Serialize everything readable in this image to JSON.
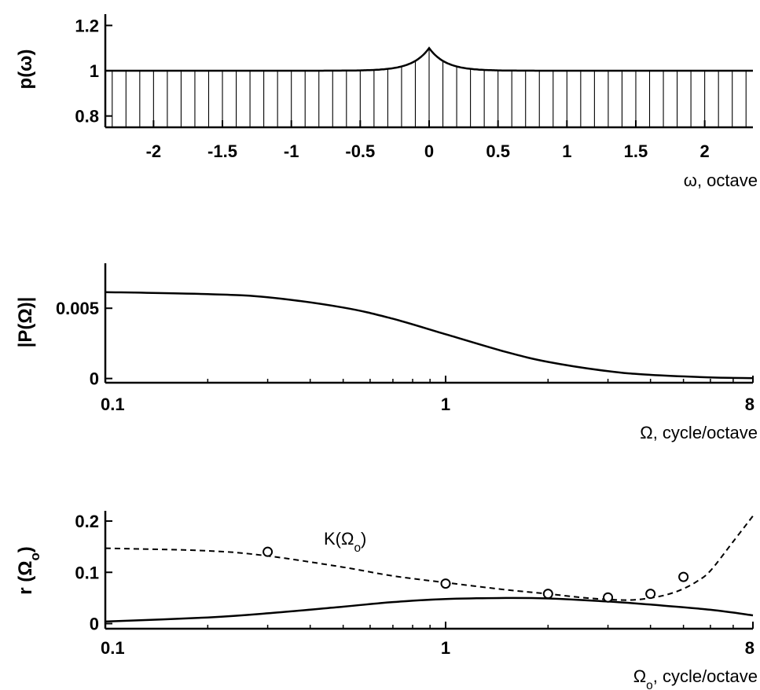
{
  "chart_data": [
    {
      "type": "line",
      "ylabel": "p(ω)",
      "xlabel": "ω, octave",
      "xlim": [
        -2.35,
        2.35
      ],
      "ylim": [
        0.75,
        1.25
      ],
      "x_ticks": [
        {
          "value": -2,
          "label": "-2"
        },
        {
          "value": -1.5,
          "label": "-1.5"
        },
        {
          "value": -1,
          "label": "-1"
        },
        {
          "value": -0.5,
          "label": "-0.5"
        },
        {
          "value": 0,
          "label": "0"
        },
        {
          "value": 0.5,
          "label": "0.5"
        },
        {
          "value": 1,
          "label": "1"
        },
        {
          "value": 1.5,
          "label": "1.5"
        },
        {
          "value": 2,
          "label": "2"
        }
      ],
      "y_ticks": [
        {
          "value": 0.8,
          "label": "0.8"
        },
        {
          "value": 1,
          "label": "1"
        },
        {
          "value": 1.2,
          "label": "1.2"
        }
      ],
      "baseline": 1.0,
      "peak_x": 0,
      "peak_value": 1.1,
      "peak_width": 0.12,
      "stem_spacing": 0.1,
      "grid": false
    },
    {
      "type": "line",
      "ylabel": "|P(Ω)|",
      "xlabel": "Ω, cycle/octave",
      "xscale": "log",
      "xlim": [
        0.1,
        8
      ],
      "ylim": [
        -0.0003,
        0.0082
      ],
      "x_ticks": [
        {
          "value": 0.1,
          "label": "0.1"
        },
        {
          "value": 1,
          "label": "1"
        },
        {
          "value": 8,
          "label": "8"
        }
      ],
      "y_ticks": [
        {
          "value": 0,
          "label": "0"
        },
        {
          "value": 0.005,
          "label": "0.005"
        }
      ],
      "x": [
        0.1,
        0.2,
        0.3,
        0.5,
        0.7,
        1,
        1.5,
        2,
        3,
        4,
        6,
        8
      ],
      "values": [
        0.00615,
        0.006,
        0.00578,
        0.00505,
        0.00425,
        0.00315,
        0.0019,
        0.00118,
        0.00052,
        0.00026,
        8e-05,
        3e-05
      ],
      "grid": false
    },
    {
      "type": "line",
      "ylabel": "r (Ωo)",
      "xlabel": "Ωo, cycle/octave",
      "xscale": "log",
      "xlim": [
        0.1,
        8
      ],
      "ylim": [
        -0.01,
        0.22
      ],
      "x_ticks": [
        {
          "value": 0.1,
          "label": "0.1"
        },
        {
          "value": 1,
          "label": "1"
        },
        {
          "value": 8,
          "label": "8"
        }
      ],
      "y_ticks": [
        {
          "value": 0,
          "label": "0"
        },
        {
          "value": 0.1,
          "label": "0.1"
        },
        {
          "value": 0.2,
          "label": "0.2"
        }
      ],
      "annotation": "K(Ωo)",
      "series": [
        {
          "style": "dashed",
          "x": [
            0.1,
            0.2,
            0.3,
            0.5,
            0.7,
            1,
            1.5,
            2,
            2.5,
            3,
            3.5,
            4,
            4.5,
            5,
            5.5,
            6,
            7,
            8
          ],
          "values": [
            0.147,
            0.142,
            0.132,
            0.11,
            0.093,
            0.08,
            0.066,
            0.058,
            0.051,
            0.047,
            0.046,
            0.05,
            0.057,
            0.068,
            0.083,
            0.103,
            0.16,
            0.21
          ]
        },
        {
          "style": "solid",
          "x": [
            0.1,
            0.2,
            0.3,
            0.5,
            0.7,
            1,
            1.5,
            2,
            3,
            4,
            6,
            8
          ],
          "values": [
            0.004,
            0.012,
            0.02,
            0.033,
            0.042,
            0.048,
            0.05,
            0.049,
            0.043,
            0.037,
            0.027,
            0.016
          ]
        },
        {
          "style": "markers",
          "x": [
            0.3,
            1,
            2,
            3,
            4,
            5
          ],
          "values": [
            0.14,
            0.078,
            0.058,
            0.051,
            0.058,
            0.091
          ]
        }
      ],
      "grid": false
    }
  ]
}
